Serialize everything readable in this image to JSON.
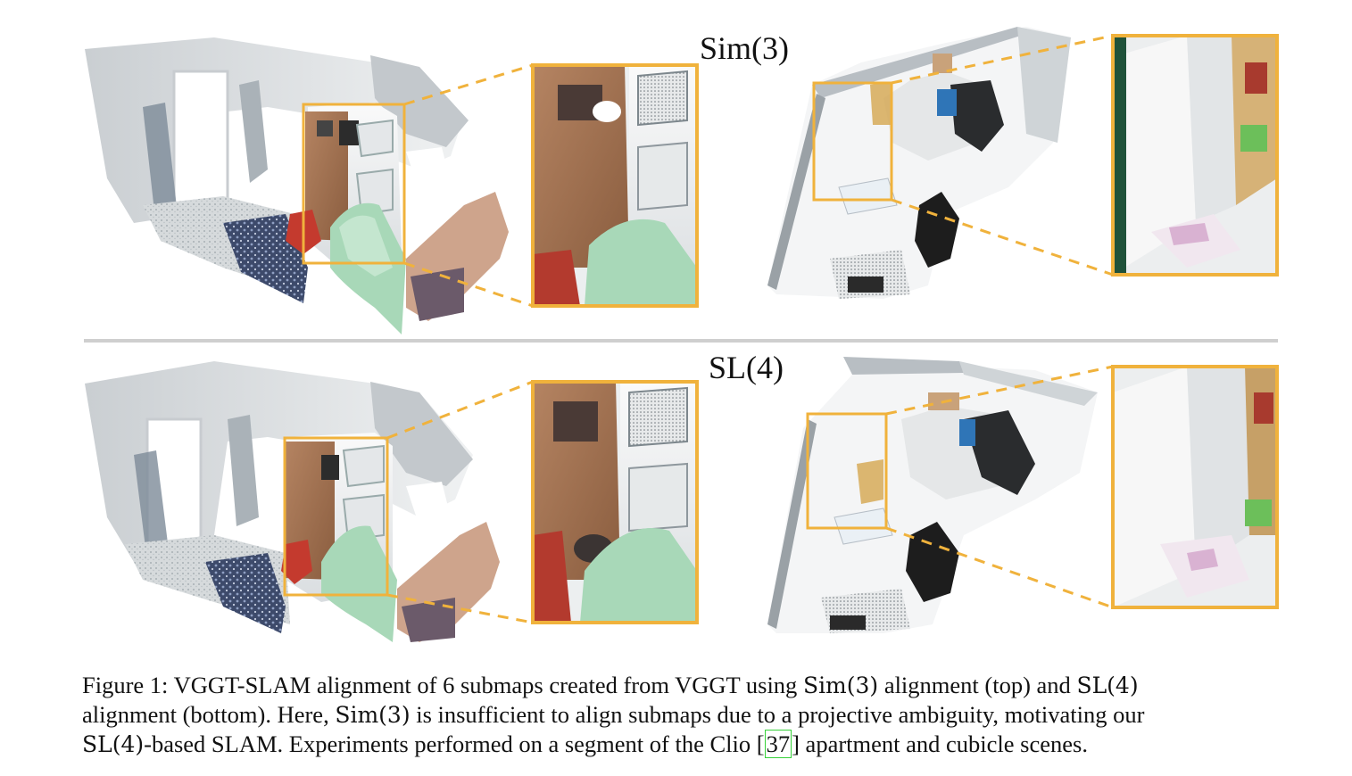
{
  "figure": {
    "top_label": "Sim(3)",
    "bottom_label": "SL(4)",
    "highlight_color": "#f0b23c",
    "divider_color": "#cfcfcf"
  },
  "caption": {
    "l1_a": "Figure 1: VGGT-SLAM alignment of 6 submaps created from VGGT using ",
    "l1_m1": "Sim(3)",
    "l1_b": " alignment (top) and ",
    "l1_m2": "SL(4)",
    "l2_a": "alignment (bottom). Here, ",
    "l2_m1": "Sim(3)",
    "l2_b": " is insufficient to align submaps due to a projective ambiguity, motivating our",
    "l3_m1": "SL(4)",
    "l3_a": "-based SLAM. Experiments performed on a segment of the Clio [",
    "l3_ref": "37",
    "l3_b": "] apartment and cubicle scenes."
  }
}
